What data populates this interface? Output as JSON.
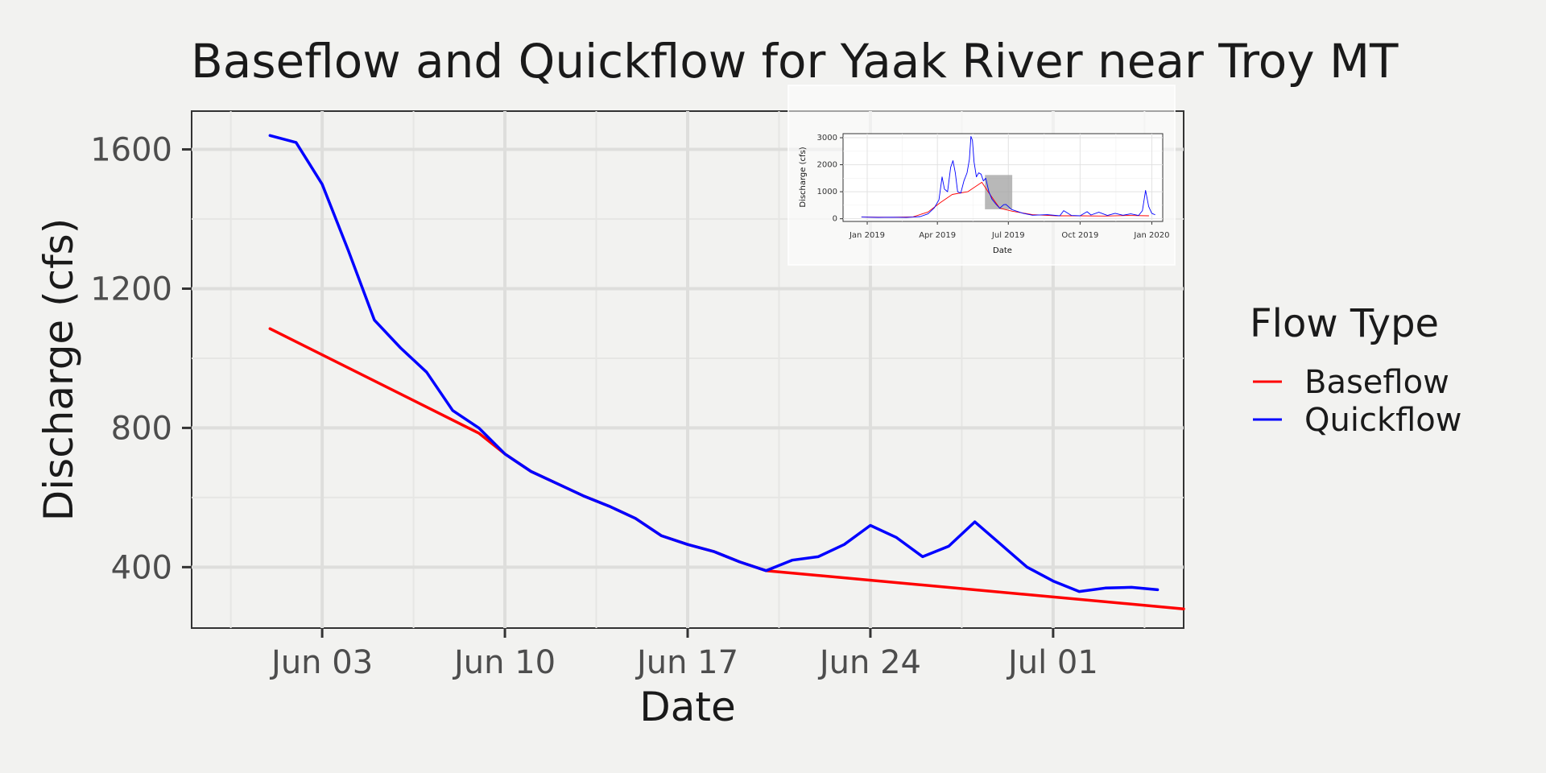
{
  "chart_data": [
    {
      "type": "line",
      "title": "Baseflow and Quickflow for Yaak River near Troy MT",
      "xlabel": "Date",
      "ylabel": "Discharge (cfs)",
      "x_ticks": [
        "Jun 03",
        "Jun 10",
        "Jun 17",
        "Jun 24",
        "Jul 01"
      ],
      "y_ticks": [
        "400",
        "800",
        "1200",
        "1600"
      ],
      "xlim": [
        "2019-05-29",
        "2019-07-06"
      ],
      "ylim": [
        225,
        1710
      ],
      "grid": true,
      "legend": {
        "title": "Flow Type",
        "position": "right"
      },
      "series": [
        {
          "name": "Baseflow",
          "color": "#ff0000",
          "x": [
            "2019-06-01",
            "2019-06-09",
            "2019-06-10",
            "2019-06-11",
            "2019-06-12",
            "2019-06-13",
            "2019-06-14",
            "2019-06-15",
            "2019-06-16",
            "2019-06-17",
            "2019-06-18",
            "2019-06-19",
            "2019-06-20",
            "2019-07-06"
          ],
          "y": [
            1085,
            785,
            725,
            675,
            640,
            605,
            575,
            540,
            490,
            465,
            445,
            415,
            390,
            280
          ]
        },
        {
          "name": "Quickflow",
          "color": "#0000ff",
          "x": [
            "2019-06-01",
            "2019-06-02",
            "2019-06-03",
            "2019-06-04",
            "2019-06-05",
            "2019-06-06",
            "2019-06-07",
            "2019-06-08",
            "2019-06-09",
            "2019-06-10",
            "2019-06-11",
            "2019-06-12",
            "2019-06-13",
            "2019-06-14",
            "2019-06-15",
            "2019-06-16",
            "2019-06-17",
            "2019-06-18",
            "2019-06-19",
            "2019-06-20",
            "2019-06-21",
            "2019-06-22",
            "2019-06-23",
            "2019-06-24",
            "2019-06-25",
            "2019-06-26",
            "2019-06-27",
            "2019-06-28",
            "2019-06-29",
            "2019-06-30",
            "2019-07-01",
            "2019-07-02",
            "2019-07-03",
            "2019-07-04",
            "2019-07-05"
          ],
          "y": [
            1640,
            1620,
            1500,
            1310,
            1110,
            1030,
            960,
            850,
            800,
            725,
            675,
            640,
            605,
            575,
            540,
            490,
            465,
            445,
            415,
            390,
            420,
            430,
            465,
            520,
            485,
            430,
            460,
            530,
            465,
            400,
            360,
            330,
            340,
            342,
            335
          ]
        }
      ]
    },
    {
      "type": "line",
      "role": "inset",
      "xlabel": "Date",
      "ylabel": "Discharge (cfs)",
      "x_ticks": [
        "Jan 2019",
        "Apr 2019",
        "Jul 2019",
        "Oct 2019",
        "Jan 2020"
      ],
      "y_ticks": [
        "0",
        "1000",
        "2000",
        "3000"
      ],
      "xlim": [
        "2018-12-01",
        "2020-01-15"
      ],
      "ylim": [
        -100,
        3150
      ],
      "highlight": {
        "x": [
          "2019-06-01",
          "2019-07-06"
        ],
        "y": [
          350,
          1620
        ]
      },
      "series": [
        {
          "name": "Baseflow",
          "color": "#ff0000",
          "x": [
            "2018-12-25",
            "2019-02-01",
            "2019-03-01",
            "2019-03-20",
            "2019-04-05",
            "2019-04-20",
            "2019-05-10",
            "2019-05-28",
            "2019-06-05",
            "2019-06-20",
            "2019-07-06",
            "2019-08-01",
            "2019-09-01",
            "2019-10-01",
            "2019-11-01",
            "2019-12-01",
            "2019-12-28"
          ],
          "y": [
            60,
            55,
            70,
            250,
            600,
            900,
            1000,
            1350,
            1000,
            390,
            280,
            150,
            110,
            110,
            100,
            120,
            110
          ]
        },
        {
          "name": "Quickflow",
          "color": "#0000ff",
          "x": [
            "2018-12-25",
            "2019-01-15",
            "2019-02-01",
            "2019-02-20",
            "2019-03-01",
            "2019-03-10",
            "2019-03-20",
            "2019-03-28",
            "2019-04-03",
            "2019-04-07",
            "2019-04-10",
            "2019-04-14",
            "2019-04-18",
            "2019-04-21",
            "2019-04-24",
            "2019-04-27",
            "2019-05-01",
            "2019-05-05",
            "2019-05-09",
            "2019-05-12",
            "2019-05-14",
            "2019-05-16",
            "2019-05-18",
            "2019-05-21",
            "2019-05-24",
            "2019-05-27",
            "2019-05-30",
            "2019-06-02",
            "2019-06-06",
            "2019-06-10",
            "2019-06-15",
            "2019-06-20",
            "2019-06-25",
            "2019-06-28",
            "2019-07-05",
            "2019-07-20",
            "2019-08-01",
            "2019-08-20",
            "2019-09-05",
            "2019-09-10",
            "2019-09-20",
            "2019-10-01",
            "2019-10-10",
            "2019-10-15",
            "2019-10-25",
            "2019-11-05",
            "2019-11-15",
            "2019-11-25",
            "2019-12-05",
            "2019-12-15",
            "2019-12-20",
            "2019-12-24",
            "2019-12-28",
            "2020-01-01",
            "2020-01-05"
          ],
          "y": [
            60,
            50,
            55,
            50,
            60,
            80,
            180,
            400,
            700,
            1550,
            1100,
            1000,
            1900,
            2150,
            1700,
            1000,
            950,
            1400,
            1700,
            2200,
            3050,
            2900,
            2100,
            1550,
            1700,
            1650,
            1400,
            1500,
            1000,
            725,
            540,
            390,
            520,
            530,
            340,
            200,
            130,
            150,
            110,
            300,
            120,
            110,
            260,
            140,
            240,
            120,
            200,
            130,
            180,
            120,
            300,
            1050,
            450,
            200,
            150
          ]
        }
      ]
    }
  ]
}
